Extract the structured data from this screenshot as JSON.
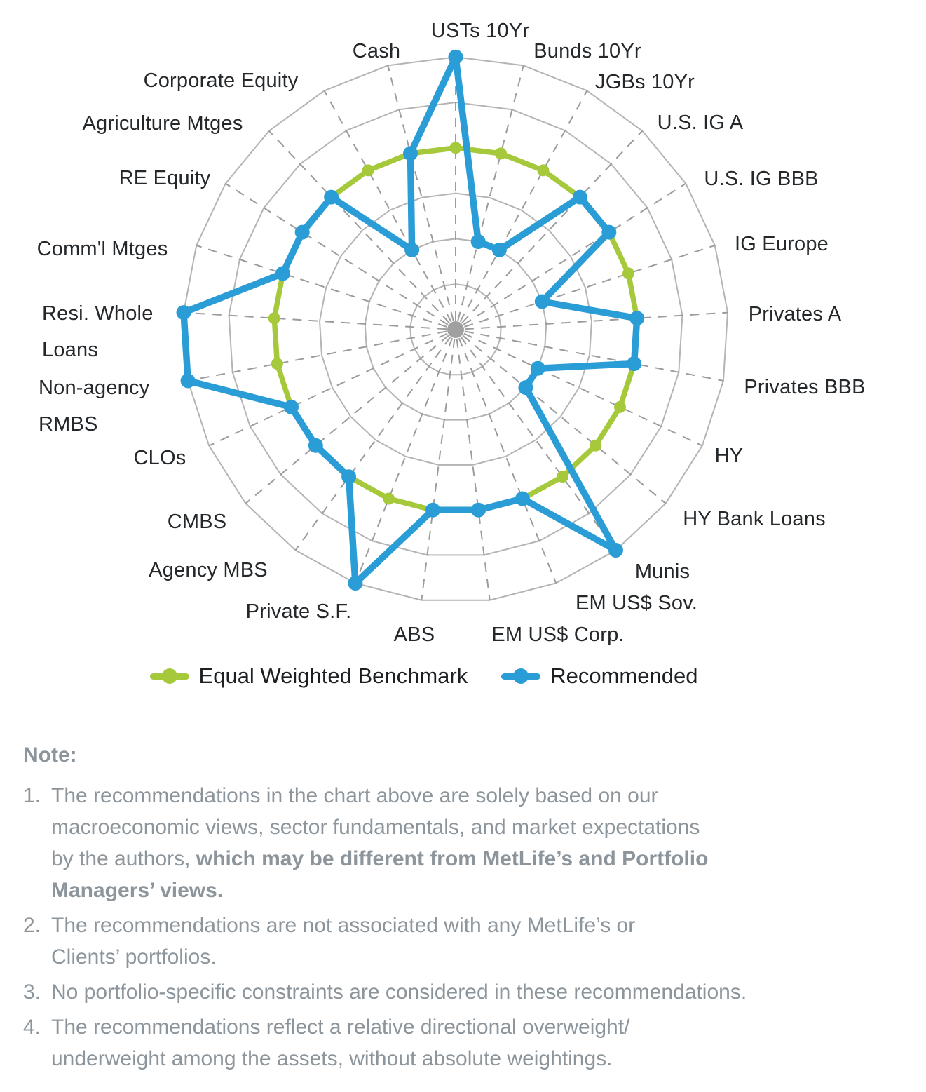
{
  "chart_data": {
    "type": "radar",
    "axes": [
      "USTs 10Yr",
      "Bunds 10Yr",
      "JGBs 10Yr",
      "U.S. IG A",
      "U.S. IG BBB",
      "IG Europe",
      "Privates A",
      "Privates BBB",
      "HY",
      "HY Bank Loans",
      "Munis",
      "EM US$ Sov.",
      "EM US$ Corp.",
      "ABS",
      "Private S.F.",
      "Agency MBS",
      "CMBS",
      "CLOs",
      "Non-agency RMBS",
      "Resi. Whole Loans",
      "Comm'l Mtges",
      "RE Equity",
      "Agriculture Mtges",
      "Corporate Equity",
      "Cash"
    ],
    "series": [
      {
        "name": "Equal Weighted Benchmark",
        "color": "#a6c93b",
        "values": [
          4,
          4,
          4,
          4,
          4,
          4,
          4,
          4,
          4,
          4,
          4,
          4,
          4,
          4,
          4,
          4,
          4,
          4,
          4,
          4,
          4,
          4,
          4,
          4,
          4
        ]
      },
      {
        "name": "Recommended",
        "color": "#2b9dd6",
        "values": [
          6,
          2,
          2,
          4,
          4,
          2,
          4,
          4,
          2,
          2,
          6,
          4,
          4,
          4,
          6,
          4,
          4,
          4,
          6,
          6,
          4,
          4,
          4,
          2,
          4
        ]
      }
    ],
    "scale": {
      "min": 0,
      "max": 6,
      "rings": 6,
      "tick_labels_visible": false
    },
    "grid": {
      "ring_color": "#b4b4b4",
      "spoke_color": "#9c9c9c",
      "center_dot_color": "#a0a0a0",
      "spokes_dashed": true
    },
    "legend_position": "bottom"
  },
  "legend": {
    "items": [
      {
        "label": "Equal Weighted Benchmark",
        "color": "#a6c93b"
      },
      {
        "label": "Recommended",
        "color": "#2b9dd6"
      }
    ]
  },
  "notes": {
    "heading": "Note:",
    "items": [
      {
        "num": "1.",
        "lines": [
          [
            {
              "text": "The recommendations in the chart above are solely based on our",
              "bold": false
            }
          ],
          [
            {
              "text": "macroeconomic views, sector fundamentals, and market expectations",
              "bold": false
            }
          ],
          [
            {
              "text": "by the authors, ",
              "bold": false
            },
            {
              "text": "which may be different from MetLife’s and Portfolio",
              "bold": true
            }
          ],
          [
            {
              "text": "Managers’ views.",
              "bold": true
            }
          ]
        ]
      },
      {
        "num": "2.",
        "lines": [
          [
            {
              "text": "The recommendations are not associated with any MetLife’s or",
              "bold": false
            }
          ],
          [
            {
              "text": "Clients’ portfolios.",
              "bold": false
            }
          ]
        ]
      },
      {
        "num": "3.",
        "lines": [
          [
            {
              "text": "No portfolio-specific constraints are considered in these recommendations.",
              "bold": false
            }
          ]
        ]
      },
      {
        "num": "4.",
        "lines": [
          [
            {
              "text": "The recommendations reflect a relative directional overweight/",
              "bold": false
            }
          ],
          [
            {
              "text": "underweight among the assets, without absolute weightings.",
              "bold": false
            }
          ]
        ]
      }
    ]
  }
}
